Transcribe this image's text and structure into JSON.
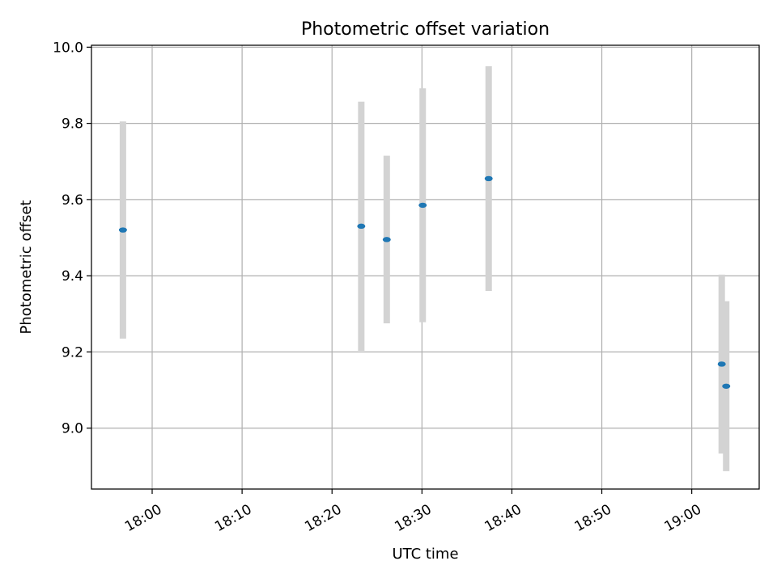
{
  "chart_data": {
    "type": "scatter",
    "title": "Photometric offset variation",
    "xlabel": "UTC time",
    "ylabel": "Photometric offset",
    "x_axis_type": "time",
    "xlim": [
      "17:53:15",
      "19:07:30"
    ],
    "ylim": [
      8.84,
      10.005
    ],
    "x_ticks": [
      "18:00",
      "18:10",
      "18:20",
      "18:30",
      "18:40",
      "18:50",
      "19:00"
    ],
    "y_ticks": [
      "9.0",
      "9.2",
      "9.4",
      "9.6",
      "9.8",
      "10.0"
    ],
    "grid": true,
    "legend": "none",
    "series": [
      {
        "color": "#1f77b4",
        "errorbar_color": "#d3d3d3",
        "points": [
          {
            "x": "17:56:45",
            "y": 9.52,
            "ylow": 9.235,
            "yhigh": 9.805
          },
          {
            "x": "18:23:15",
            "y": 9.53,
            "ylow": 9.203,
            "yhigh": 9.857
          },
          {
            "x": "18:26:05",
            "y": 9.495,
            "ylow": 9.275,
            "yhigh": 9.715
          },
          {
            "x": "18:30:05",
            "y": 9.585,
            "ylow": 9.278,
            "yhigh": 9.892
          },
          {
            "x": "18:37:25",
            "y": 9.655,
            "ylow": 9.36,
            "yhigh": 9.95
          },
          {
            "x": "19:03:20",
            "y": 9.168,
            "ylow": 8.933,
            "yhigh": 9.403
          },
          {
            "x": "19:03:50",
            "y": 9.11,
            "ylow": 8.887,
            "yhigh": 9.333
          }
        ]
      }
    ]
  }
}
